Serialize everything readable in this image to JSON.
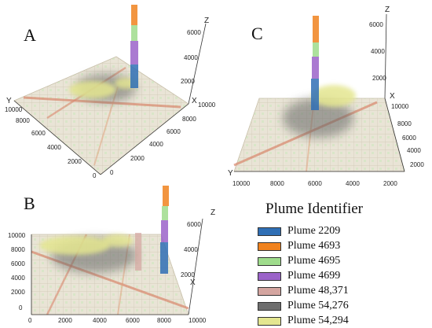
{
  "panels": [
    {
      "letter": "A",
      "z_label": "Z",
      "x_label": "X",
      "y_label": "Y",
      "z_ticks": [
        "6000",
        "4000",
        "2000"
      ],
      "x_ticks": [
        "10000",
        "8000",
        "6000",
        "4000",
        "2000",
        "0"
      ],
      "y_ticks": [
        "10000",
        "8000",
        "6000",
        "4000",
        "2000",
        "0"
      ]
    },
    {
      "letter": "B",
      "z_label": "Z",
      "x_label": "X",
      "z_ticks": [
        "6000",
        "4000",
        "2000"
      ],
      "x_ticks": [
        "0",
        "2000",
        "4000",
        "6000",
        "8000",
        "10000"
      ],
      "y_ticks": [
        "10000",
        "8000",
        "6000",
        "4000",
        "2000",
        "0"
      ]
    },
    {
      "letter": "C",
      "z_label": "Z",
      "x_label": "X",
      "y_label": "Y",
      "z_ticks": [
        "6000",
        "4000",
        "2000"
      ],
      "x_ticks": [
        "10000",
        "8000",
        "6000",
        "4000",
        "2000"
      ],
      "y_ticks": [
        "10000",
        "8000",
        "6000",
        "4000",
        "2000"
      ]
    }
  ],
  "legend": {
    "title": "Plume Identifier",
    "items": [
      {
        "label": "Plume 2209",
        "color": "#2f6fb5"
      },
      {
        "label": "Plume 4693",
        "color": "#f0821e"
      },
      {
        "label": "Plume 4695",
        "color": "#9fdc8c"
      },
      {
        "label": "Plume 4699",
        "color": "#9b63c9"
      },
      {
        "label": "Plume 48,371",
        "color": "#d4a5a0"
      },
      {
        "label": "Plume 54,276",
        "color": "#6e6e6e"
      },
      {
        "label": "Plume 54,294",
        "color": "#e4e690"
      }
    ]
  }
}
